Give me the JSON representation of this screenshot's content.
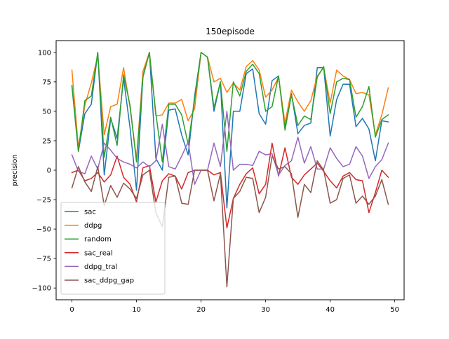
{
  "chart_data": {
    "type": "line",
    "title": "150episode",
    "xlabel": "",
    "ylabel": "precision",
    "xlim": [
      -2.45,
      51.45
    ],
    "ylim": [
      -110,
      110
    ],
    "xticks": [
      0,
      10,
      20,
      30,
      40,
      50
    ],
    "yticks": [
      -100,
      -75,
      -50,
      -25,
      0,
      25,
      50,
      75,
      100
    ],
    "grid": false,
    "legend_position": "lower-left",
    "series": [
      {
        "name": "sac",
        "color": "#1f77b4",
        "values": [
          71,
          16,
          48,
          56,
          100,
          -4,
          44,
          27,
          78,
          36,
          -17,
          80,
          100,
          10,
          0,
          51,
          52,
          30,
          13,
          63,
          100,
          96,
          50,
          75,
          -32,
          50,
          50,
          82,
          86,
          48,
          39,
          76,
          80,
          37,
          65,
          31,
          38,
          40,
          87,
          87,
          29,
          60,
          73,
          73,
          37,
          44,
          35,
          8,
          42,
          41
        ]
      },
      {
        "name": "ddpg",
        "color": "#ff7f0e",
        "values": [
          85,
          19,
          55,
          74,
          97,
          30,
          54,
          56,
          87,
          53,
          10,
          84,
          100,
          46,
          47,
          57,
          57,
          60,
          42,
          52,
          100,
          96,
          75,
          78,
          66,
          74,
          68,
          88,
          93,
          85,
          62,
          68,
          79,
          40,
          68,
          58,
          50,
          59,
          80,
          87,
          57,
          85,
          80,
          77,
          65,
          66,
          64,
          30,
          47,
          70
        ]
      },
      {
        "name": "random",
        "color": "#2ca02c",
        "values": [
          72,
          16,
          59,
          63,
          100,
          11,
          45,
          21,
          81,
          55,
          7,
          79,
          100,
          48,
          7,
          56,
          56,
          47,
          22,
          60,
          100,
          96,
          53,
          75,
          16,
          75,
          63,
          84,
          90,
          82,
          50,
          54,
          80,
          34,
          64,
          38,
          46,
          43,
          79,
          88,
          48,
          75,
          78,
          77,
          45,
          54,
          71,
          28,
          43,
          47
        ]
      },
      {
        "name": "sac_real",
        "color": "#d62728",
        "values": [
          -2,
          0,
          -9,
          -7,
          -2,
          -10,
          -4,
          12,
          -6,
          -12,
          -27,
          2,
          4,
          -27,
          -9,
          -3,
          -5,
          -16,
          -2,
          0,
          0,
          0,
          -4,
          -2,
          -49,
          -24,
          -12,
          -3,
          2,
          -20,
          -12,
          23,
          -5,
          19,
          -6,
          -12,
          -4,
          1,
          6,
          -1,
          -9,
          -15,
          -5,
          -2,
          -8,
          -9,
          -36,
          -19,
          0,
          -6
        ]
      },
      {
        "name": "ddpg_tral",
        "color": "#9467bd",
        "values": [
          13,
          -1,
          -3,
          12,
          1,
          23,
          17,
          10,
          7,
          5,
          2,
          7,
          3,
          8,
          39,
          3,
          1,
          12,
          24,
          -12,
          0,
          0,
          23,
          3,
          50,
          0,
          5,
          5,
          4,
          16,
          13,
          14,
          -4,
          4,
          8,
          28,
          6,
          20,
          1,
          1,
          19,
          10,
          3,
          5,
          20,
          12,
          -7,
          3,
          9,
          23
        ]
      },
      {
        "name": "sac_ddpg_gap",
        "color": "#8c564b",
        "values": [
          -15,
          3,
          -10,
          -18,
          3,
          -30,
          -13,
          -23,
          -11,
          -16,
          -24,
          -4,
          0,
          -36,
          -48,
          -6,
          -5,
          -28,
          -29,
          0,
          0,
          0,
          -26,
          -3,
          -99,
          -24,
          -18,
          -6,
          -7,
          -36,
          -23,
          12,
          1,
          3,
          -3,
          -40,
          -12,
          -19,
          8,
          0,
          -28,
          -25,
          -7,
          -4,
          -28,
          -22,
          -29,
          -22,
          -8,
          -29
        ]
      }
    ]
  }
}
